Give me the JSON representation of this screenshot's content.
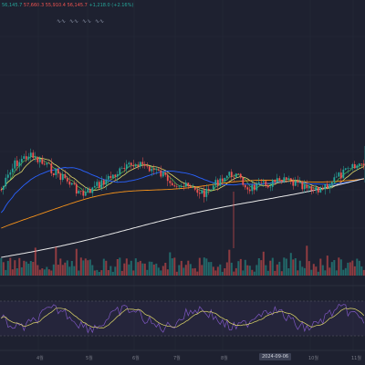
{
  "header": {
    "ohlc": [
      {
        "label": "56,145.7",
        "tone": "up"
      },
      {
        "label": "57,660.3",
        "tone": "dn"
      },
      {
        "label": "55,910.4",
        "tone": "dn"
      },
      {
        "label": "56,145.7",
        "tone": "dn"
      },
      {
        "label": "+1,218.0 (+2.16%)",
        "tone": "up"
      }
    ],
    "indicator_badges": [
      "∿∿",
      "∿∿",
      "∿∿",
      "∿∿"
    ]
  },
  "time_axis": {
    "labels": [
      "4월",
      "5월",
      "6월",
      "7월",
      "8월",
      "10월",
      "11월"
    ],
    "crosshair_date": "2024-09-06"
  },
  "colors": {
    "background": "#1e2130",
    "up": "#26a69a",
    "down": "#ef5350",
    "ma_fast": "#4caf50",
    "ma_mid": "#e0d86a",
    "ma_slow": "#2962ff",
    "ma_long": "#f7931a",
    "ma_200": "#e8e8e8",
    "rsi": "#7e57c2"
  },
  "chart_data": {
    "type": "candlestick",
    "panes": [
      "price",
      "volume",
      "rsi"
    ]
  }
}
